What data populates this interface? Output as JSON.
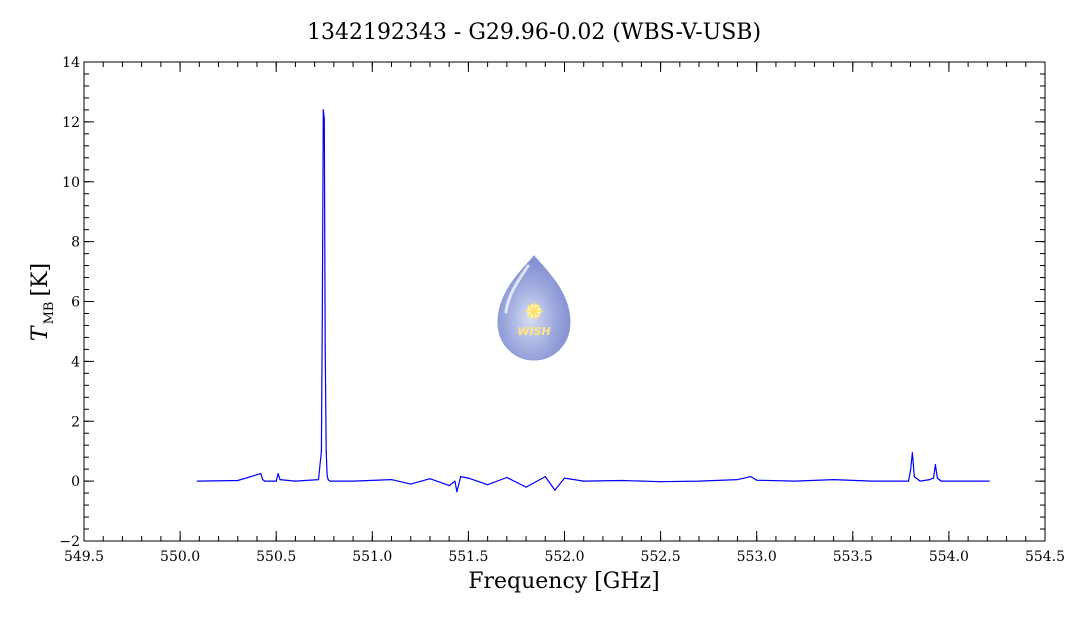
{
  "chart_data": {
    "type": "line",
    "title": "1342192343 - G29.96-0.02 (WBS-V-USB)",
    "xlabel": "Frequency [GHz]",
    "ylabel": {
      "main": "T",
      "subscript": "MB",
      "unit": "[K]"
    },
    "xlim": [
      549.5,
      554.5
    ],
    "ylim": [
      -2,
      14
    ],
    "xticks": [
      "549.5",
      "550.0",
      "550.5",
      "551.0",
      "551.5",
      "552.0",
      "552.5",
      "553.0",
      "553.5",
      "554.0",
      "554.5"
    ],
    "yticks": [
      "−2",
      "0",
      "2",
      "4",
      "6",
      "8",
      "10",
      "12",
      "14"
    ],
    "grid": false,
    "logo": {
      "text": "WISH"
    },
    "series": [
      {
        "color": "#0000ff",
        "x": [
          550.09,
          550.3,
          550.42,
          550.43,
          550.44,
          550.5,
          550.51,
          550.52,
          550.6,
          550.72,
          550.735,
          550.74,
          550.745,
          550.75,
          550.755,
          550.76,
          550.765,
          550.77,
          550.78,
          550.9,
          551.1,
          551.2,
          551.3,
          551.4,
          551.43,
          551.44,
          551.46,
          551.5,
          551.6,
          551.7,
          551.8,
          551.9,
          551.95,
          552.0,
          552.1,
          552.3,
          552.5,
          552.7,
          552.9,
          552.97,
          553.0,
          553.2,
          553.4,
          553.6,
          553.79,
          553.8,
          553.81,
          553.82,
          553.85,
          553.9,
          553.92,
          553.93,
          553.94,
          553.96,
          554.1,
          554.21
        ],
        "y": [
          0.0,
          0.02,
          0.25,
          0.05,
          0.0,
          0.0,
          0.25,
          0.05,
          0.0,
          0.05,
          1.0,
          5.5,
          12.4,
          12.1,
          4.5,
          1.0,
          0.2,
          0.05,
          0.0,
          0.0,
          0.05,
          -0.1,
          0.08,
          -0.15,
          0.0,
          -0.35,
          0.15,
          0.1,
          -0.12,
          0.12,
          -0.2,
          0.15,
          -0.3,
          0.1,
          0.0,
          0.02,
          -0.02,
          0.0,
          0.05,
          0.15,
          0.03,
          0.0,
          0.05,
          0.0,
          0.0,
          0.35,
          0.95,
          0.15,
          0.0,
          0.05,
          0.1,
          0.55,
          0.1,
          0.0,
          0.0,
          0.0
        ]
      }
    ]
  }
}
